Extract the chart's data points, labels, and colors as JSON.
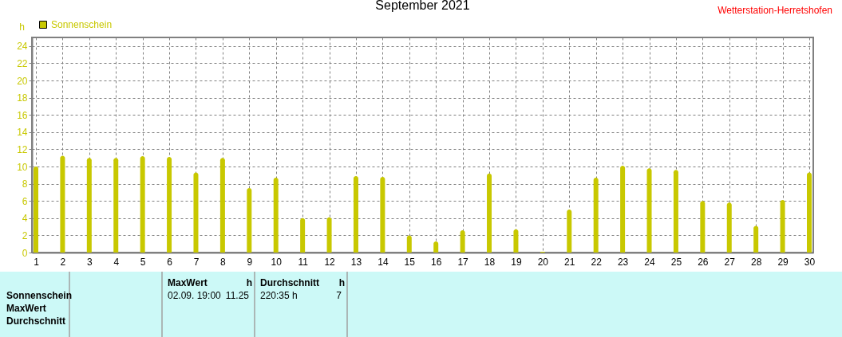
{
  "chart_data": {
    "type": "bar",
    "title": "September 2021",
    "ylabel": "h",
    "x": [
      1,
      2,
      3,
      4,
      5,
      6,
      7,
      8,
      9,
      10,
      11,
      12,
      13,
      14,
      15,
      16,
      17,
      18,
      19,
      20,
      21,
      22,
      23,
      24,
      25,
      26,
      27,
      28,
      29,
      30
    ],
    "series": [
      {
        "name": "Sonnenschein",
        "color": "#c8c800",
        "values": [
          10.0,
          11.25,
          11.0,
          11.0,
          11.2,
          11.1,
          9.3,
          11.0,
          7.5,
          8.7,
          4.0,
          4.1,
          8.9,
          8.8,
          2.0,
          1.3,
          2.6,
          9.2,
          2.7,
          0.1,
          5.0,
          8.7,
          10.1,
          9.8,
          9.6,
          6.0,
          5.8,
          3.1,
          6.1,
          9.3
        ]
      }
    ],
    "xlim": [
      1,
      30
    ],
    "xticks": [
      1,
      2,
      3,
      4,
      5,
      6,
      7,
      8,
      9,
      10,
      11,
      12,
      13,
      14,
      15,
      16,
      17,
      18,
      19,
      20,
      21,
      22,
      23,
      24,
      25,
      26,
      27,
      28,
      29,
      30
    ],
    "ylim": [
      0,
      25
    ],
    "yticks": [
      0,
      2,
      4,
      6,
      8,
      10,
      12,
      14,
      16,
      18,
      20,
      22,
      24
    ],
    "grid": true,
    "legend": "top left",
    "annotations": [
      "Wetterstation-Herretshofen",
      "Sonnenschein",
      "MaxWert",
      "Durchschnitt",
      "MaxWert",
      "h",
      "02.09. 19:00",
      "11.25",
      "Durchschnitt",
      "h",
      "220:35 h",
      "7"
    ]
  }
}
